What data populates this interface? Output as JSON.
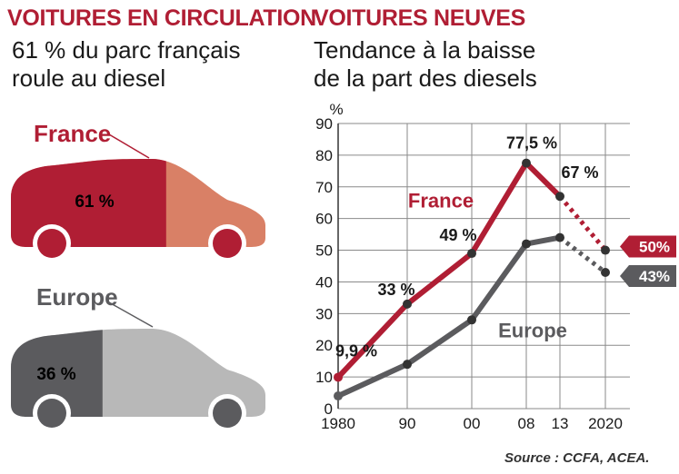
{
  "left": {
    "title": "VOITURES EN CIRCULATION",
    "subtitle_line1": "61 % du parc français",
    "subtitle_line2": "roule au diesel",
    "france": {
      "label": "France",
      "share_text": "61 %",
      "share": 0.61
    },
    "europe": {
      "label": "Europe",
      "share_text": "36 %",
      "share": 0.36
    }
  },
  "right": {
    "title": "VOITURES NEUVES",
    "subtitle_line1": "Tendance à la baisse",
    "subtitle_line2": "de la part des diesels"
  },
  "colors": {
    "france": "#b01e34",
    "france_light": "#d98066",
    "europe": "#5b5b5e",
    "europe_light": "#b8b8b8",
    "grid": "#8a8a8a"
  },
  "chart_data": {
    "type": "line",
    "unit_label": "%",
    "ylim": [
      0,
      90
    ],
    "yticks": [
      0,
      10,
      20,
      30,
      40,
      50,
      60,
      70,
      80,
      90
    ],
    "xticks": [
      {
        "value": 1980,
        "label": "1980"
      },
      {
        "value": 1990,
        "label": "90"
      },
      {
        "value": 2000,
        "label": "00"
      },
      {
        "value": 2008,
        "label": "08"
      },
      {
        "value": 2013,
        "label": "13"
      },
      {
        "value": 2020,
        "label": "2020"
      }
    ],
    "grid": true,
    "series": [
      {
        "name": "France",
        "x": [
          1980,
          1990,
          2000,
          2008,
          2013,
          2020
        ],
        "y": [
          9.9,
          33,
          49,
          77.5,
          67,
          50
        ],
        "projected_from_index": 4,
        "labels": [
          "9,9 %",
          "33 %",
          "49 %",
          "77,5 %",
          "67 %",
          "50%"
        ]
      },
      {
        "name": "Europe",
        "x": [
          1980,
          1990,
          2000,
          2008,
          2013,
          2020
        ],
        "y": [
          4,
          14,
          28,
          52,
          54,
          43
        ],
        "projected_from_index": 4,
        "labels": [
          "",
          "",
          "",
          "",
          "",
          "43%"
        ]
      }
    ]
  },
  "source": "Source : CCFA, ACEA."
}
